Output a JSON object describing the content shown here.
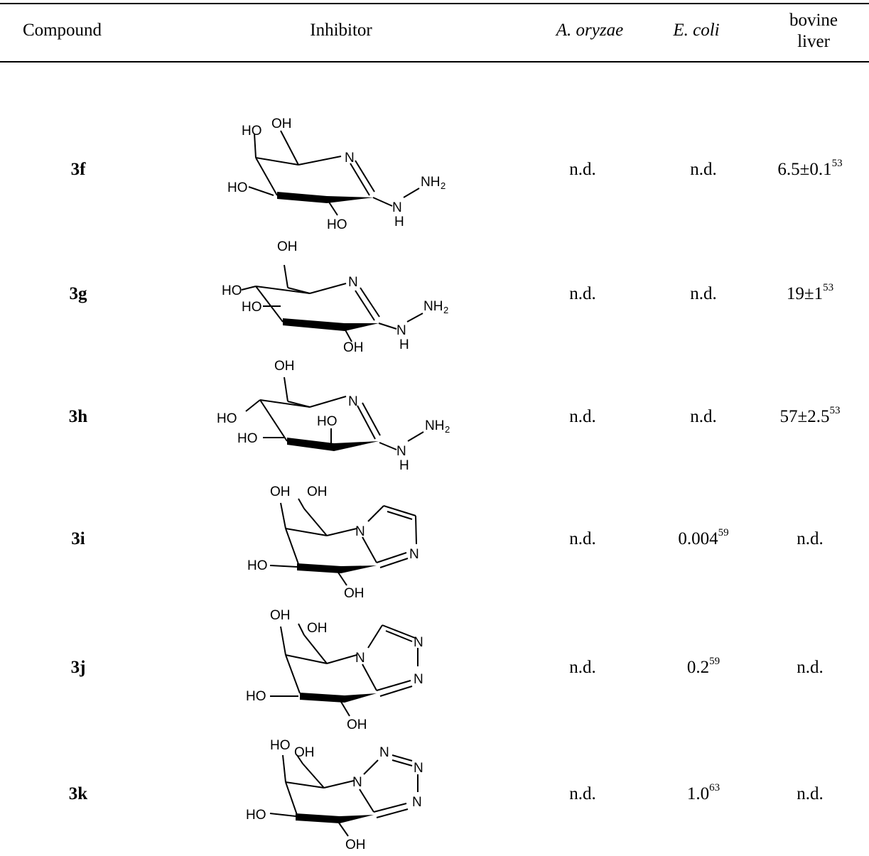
{
  "table": {
    "headers": {
      "compound": "Compound",
      "inhibitor": "Inhibitor",
      "a_oryzae": "A. oryzae",
      "e_coli": "E. coli",
      "bovine_liver": "bovine liver"
    },
    "rows": [
      {
        "compound": "3f",
        "a_oryzae": "n.d.",
        "e_coli": "n.d.",
        "bovine_liver": "6.5±0.1",
        "bovine_liver_ref": "53"
      },
      {
        "compound": "3g",
        "a_oryzae": "n.d.",
        "e_coli": "n.d.",
        "bovine_liver": "19±1",
        "bovine_liver_ref": "53"
      },
      {
        "compound": "3h",
        "a_oryzae": "n.d.",
        "e_coli": "n.d.",
        "bovine_liver": "57±2.5",
        "bovine_liver_ref": "53"
      },
      {
        "compound": "3i",
        "a_oryzae": "n.d.",
        "e_coli": "0.004",
        "e_coli_ref": "59",
        "bovine_liver": "n.d."
      },
      {
        "compound": "3j",
        "a_oryzae": "n.d.",
        "e_coli": "0.2",
        "e_coli_ref": "59",
        "bovine_liver": "n.d."
      },
      {
        "compound": "3k",
        "a_oryzae": "n.d.",
        "e_coli": "1.0",
        "e_coli_ref": "63",
        "bovine_liver": "n.d."
      }
    ]
  },
  "structure_labels": {
    "oh": "OH",
    "ho": "HO",
    "n": "N",
    "nh2": "NH",
    "sub2": "2",
    "h": "H"
  }
}
